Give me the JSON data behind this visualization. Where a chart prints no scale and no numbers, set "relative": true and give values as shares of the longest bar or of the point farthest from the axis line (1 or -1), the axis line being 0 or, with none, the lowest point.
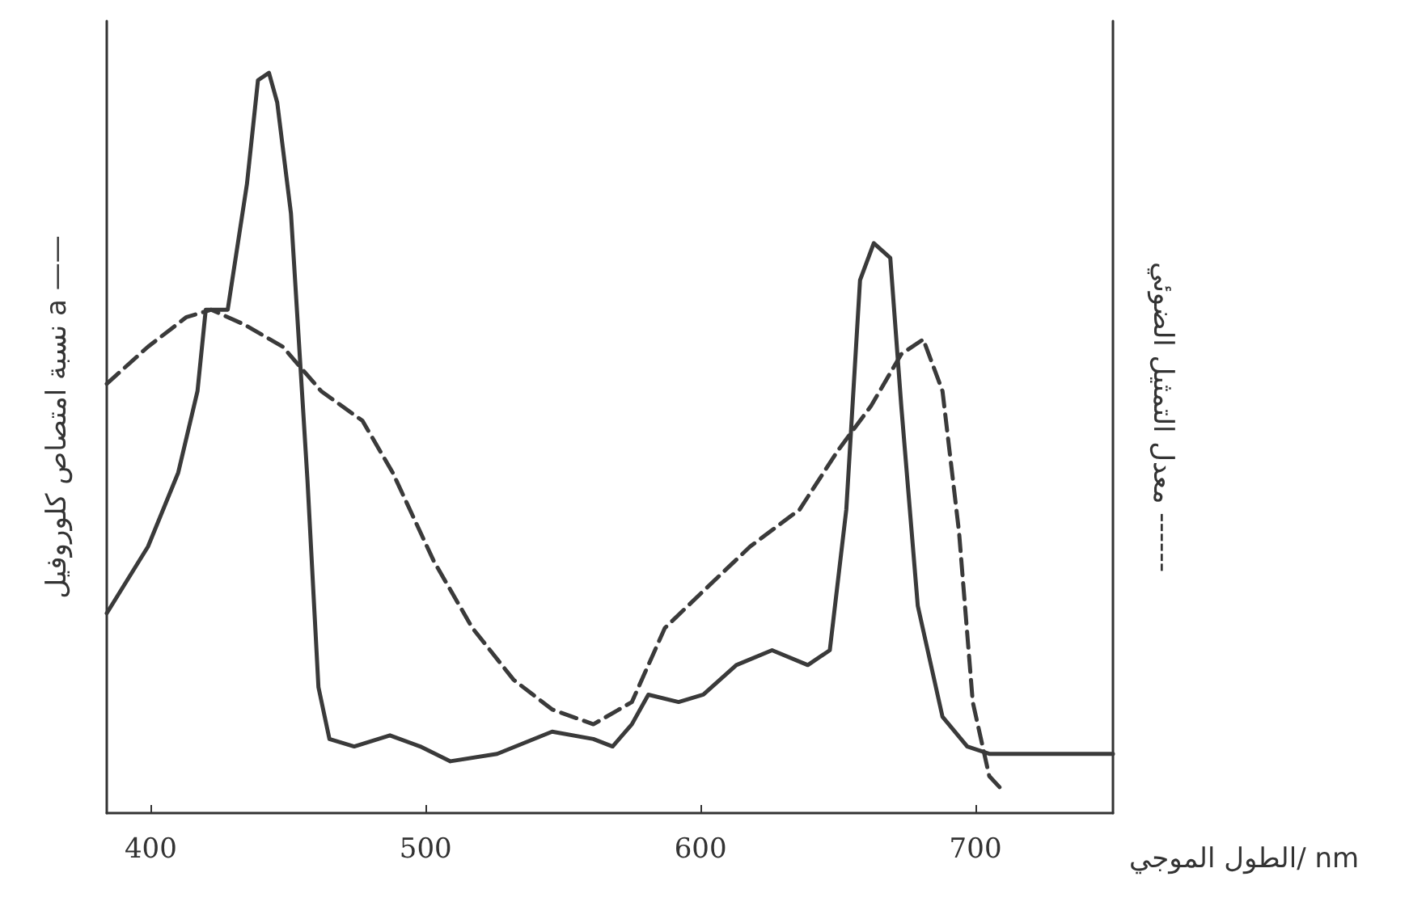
{
  "chart_data": {
    "type": "line",
    "relative": true,
    "xlabel": "الطول الموجي/ nm",
    "ylabel": "نسبة امتصاص كلوروفيل a ——",
    "y2label": "معدل التمثيل الضوئي ------",
    "xlim": [
      384,
      750
    ],
    "xticks": [
      400,
      500,
      600,
      700
    ],
    "grid": false,
    "marker": "none",
    "series": [
      {
        "color": "#3a3a3a",
        "line_style": "solid",
        "x": [
          384,
          399,
          410,
          417,
          420,
          428,
          435,
          439,
          443,
          446,
          451,
          457,
          461,
          465,
          474,
          487,
          498,
          509,
          526,
          546,
          561,
          568,
          575,
          581,
          592,
          601,
          613,
          626,
          639,
          647,
          653,
          658,
          663,
          669,
          673,
          679,
          688,
          697,
          705,
          750
        ],
        "values": [
          0.27,
          0.36,
          0.46,
          0.57,
          0.68,
          0.68,
          0.85,
          0.99,
          1,
          0.96,
          0.81,
          0.45,
          0.17,
          0.1,
          0.09,
          0.105,
          0.09,
          0.07,
          0.08,
          0.11,
          0.1,
          0.09,
          0.12,
          0.16,
          0.15,
          0.16,
          0.2,
          0.22,
          0.2,
          0.22,
          0.41,
          0.72,
          0.77,
          0.75,
          0.55,
          0.28,
          0.13,
          0.09,
          0.08,
          0.08
        ]
      },
      {
        "color": "#3a3a3a",
        "line_style": "dashed",
        "x": [
          384,
          399,
          413,
          422,
          434,
          448,
          462,
          477,
          488,
          503,
          517,
          532,
          546,
          561,
          575,
          587,
          601,
          618,
          636,
          650,
          662,
          673,
          681,
          688,
          694,
          699,
          705,
          710
        ],
        "values": [
          0.58,
          0.63,
          0.67,
          0.68,
          0.66,
          0.63,
          0.57,
          0.53,
          0.46,
          0.34,
          0.25,
          0.18,
          0.14,
          0.12,
          0.15,
          0.25,
          0.3,
          0.36,
          0.41,
          0.49,
          0.55,
          0.62,
          0.64,
          0.57,
          0.38,
          0.15,
          0.05,
          0.03
        ]
      }
    ]
  }
}
